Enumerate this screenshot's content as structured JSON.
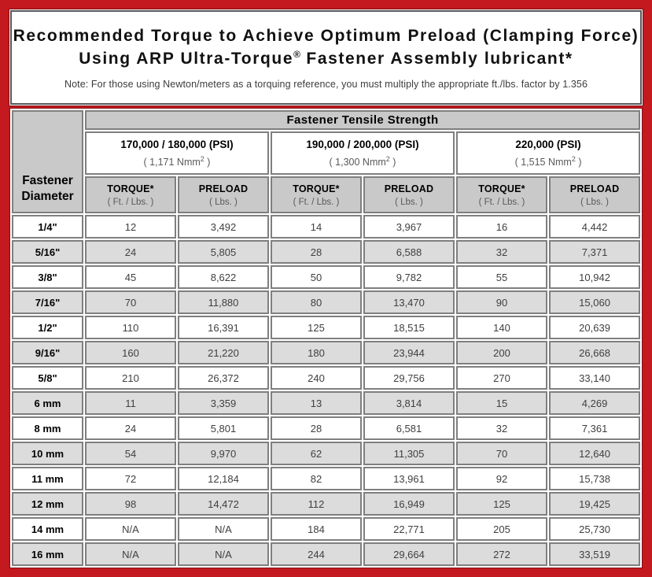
{
  "colors": {
    "border_red": "#c3191f",
    "maroon_shadow": "#7e1013",
    "header_gray": "#c9c9c9",
    "alt_row_gray": "#dcdcdc",
    "cell_border_gray": "#7f7f7f",
    "panel_border": "#58585a",
    "data_text": "#3f3f3f",
    "unit_text": "#595959"
  },
  "title": {
    "line1": "Recommended Torque to Achieve Optimum Preload (Clamping Force)",
    "line2_prefix": "Using ARP Ultra-Torque",
    "line2_trademark": "®",
    "line2_suffix": " Fastener Assembly lubricant*",
    "note": "Note: For those using Newton/meters as a torquing reference, you must multiply the appropriate ft./lbs. factor by 1.356"
  },
  "table": {
    "tensile_strength_header": "Fastener Tensile Strength",
    "diameter_header": {
      "line1": "Fastener",
      "line2": "Diameter"
    },
    "strength_groups": [
      {
        "psi": "170,000 / 180,000 (PSI)",
        "nmm_prefix": "( 1,171 Nmm",
        "nmm_sup": "2",
        "nmm_suffix": " )"
      },
      {
        "psi": "190,000 / 200,000 (PSI)",
        "nmm_prefix": "( 1,300 Nmm",
        "nmm_sup": "2",
        "nmm_suffix": " )"
      },
      {
        "psi": "220,000 (PSI)",
        "nmm_prefix": "( 1,515 Nmm",
        "nmm_sup": "2",
        "nmm_suffix": " )"
      }
    ],
    "subheaders": {
      "torque_label": "TORQUE*",
      "torque_unit": "( Ft. / Lbs. )",
      "preload_label": "PRELOAD",
      "preload_unit": "( Lbs. )"
    },
    "rows": [
      {
        "diameter": "1/4\"",
        "values": [
          "12",
          "3,492",
          "14",
          "3,967",
          "16",
          "4,442"
        ]
      },
      {
        "diameter": "5/16\"",
        "values": [
          "24",
          "5,805",
          "28",
          "6,588",
          "32",
          "7,371"
        ]
      },
      {
        "diameter": "3/8\"",
        "values": [
          "45",
          "8,622",
          "50",
          "9,782",
          "55",
          "10,942"
        ]
      },
      {
        "diameter": "7/16\"",
        "values": [
          "70",
          "11,880",
          "80",
          "13,470",
          "90",
          "15,060"
        ]
      },
      {
        "diameter": "1/2\"",
        "values": [
          "110",
          "16,391",
          "125",
          "18,515",
          "140",
          "20,639"
        ]
      },
      {
        "diameter": "9/16\"",
        "values": [
          "160",
          "21,220",
          "180",
          "23,944",
          "200",
          "26,668"
        ]
      },
      {
        "diameter": "5/8\"",
        "values": [
          "210",
          "26,372",
          "240",
          "29,756",
          "270",
          "33,140"
        ]
      },
      {
        "diameter": "6 mm",
        "values": [
          "11",
          "3,359",
          "13",
          "3,814",
          "15",
          "4,269"
        ]
      },
      {
        "diameter": "8 mm",
        "values": [
          "24",
          "5,801",
          "28",
          "6,581",
          "32",
          "7,361"
        ]
      },
      {
        "diameter": "10 mm",
        "values": [
          "54",
          "9,970",
          "62",
          "11,305",
          "70",
          "12,640"
        ]
      },
      {
        "diameter": "11 mm",
        "values": [
          "72",
          "12,184",
          "82",
          "13,961",
          "92",
          "15,738"
        ]
      },
      {
        "diameter": "12 mm",
        "values": [
          "98",
          "14,472",
          "112",
          "16,949",
          "125",
          "19,425"
        ]
      },
      {
        "diameter": "14 mm",
        "values": [
          "N/A",
          "N/A",
          "184",
          "22,771",
          "205",
          "25,730"
        ]
      },
      {
        "diameter": "16 mm",
        "values": [
          "N/A",
          "N/A",
          "244",
          "29,664",
          "272",
          "33,519"
        ]
      }
    ]
  }
}
